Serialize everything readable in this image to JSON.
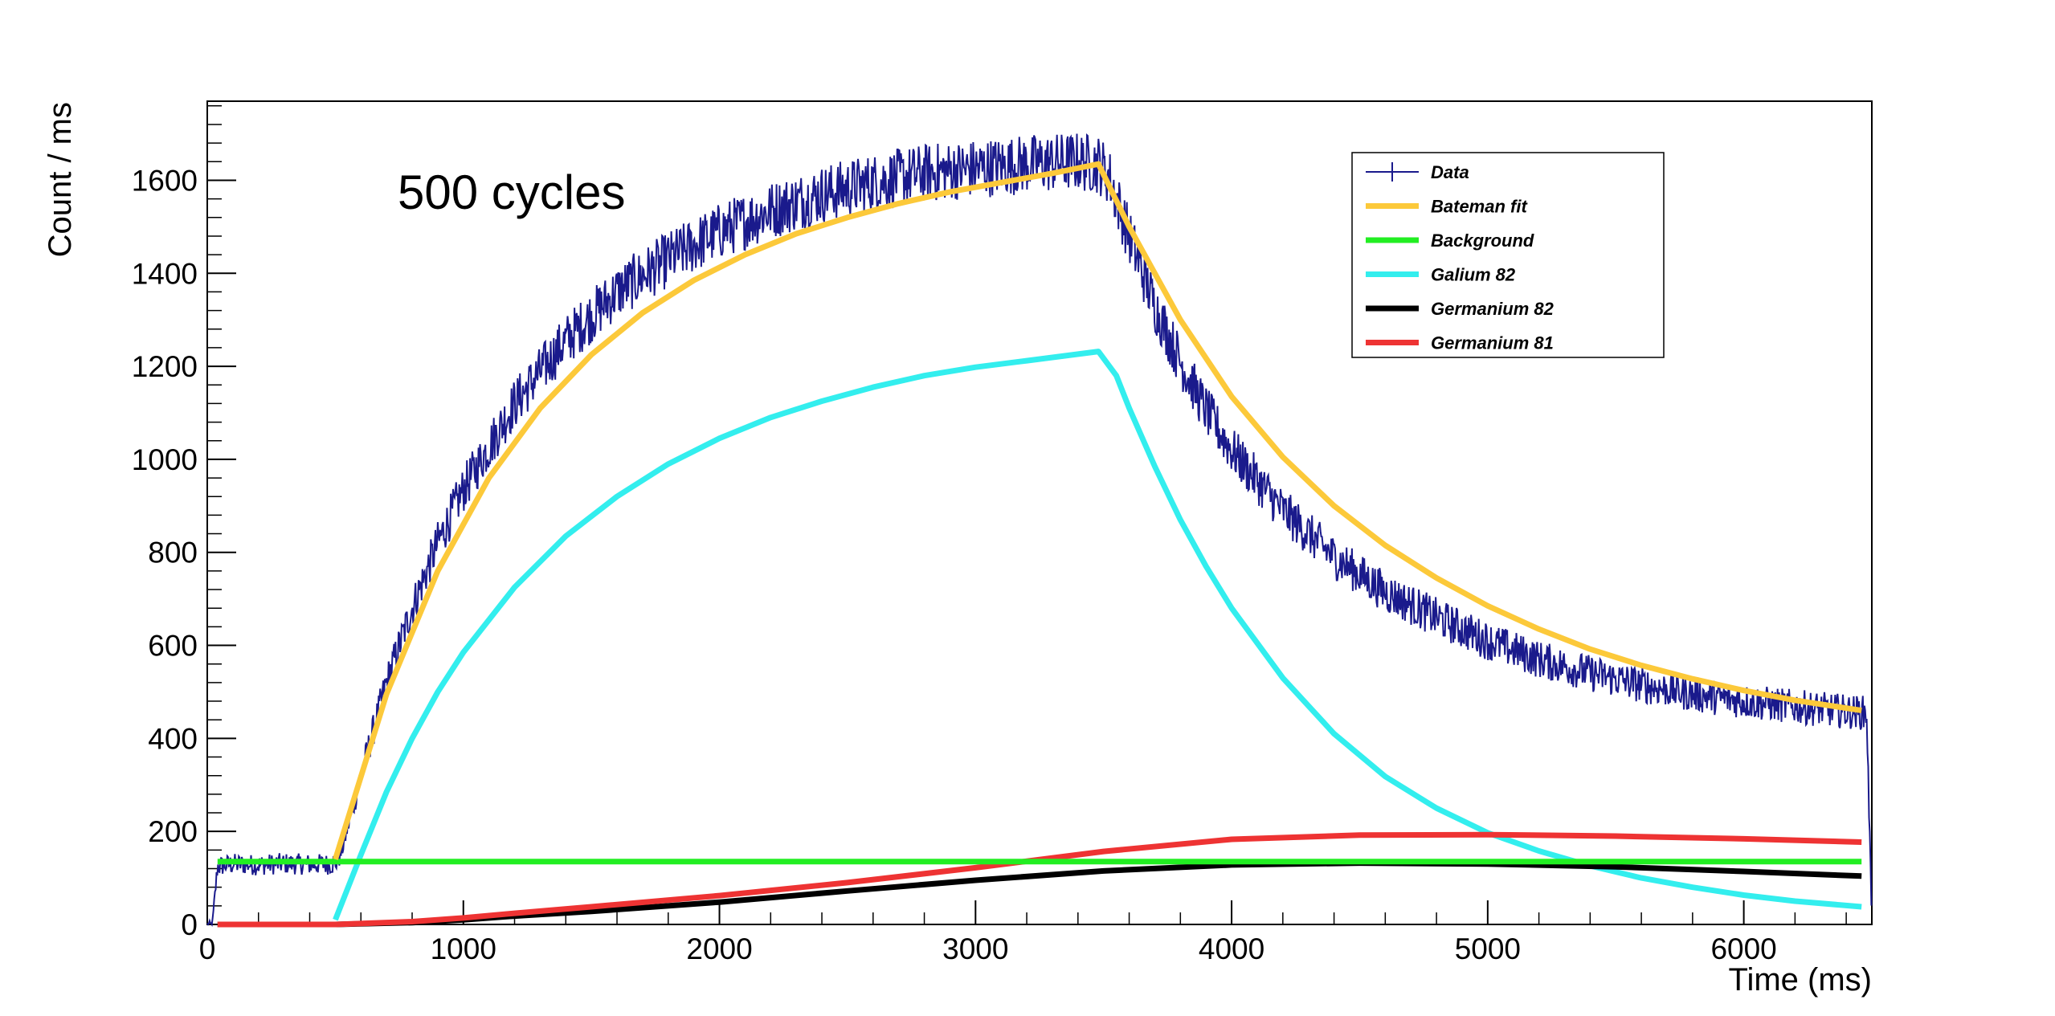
{
  "chart_data": {
    "type": "line",
    "annotation": "500 cycles",
    "xlabel": "Time (ms)",
    "ylabel": "Count / ms",
    "xlim": [
      0,
      6500
    ],
    "ylim": [
      0,
      1770
    ],
    "x_ticks": [
      0,
      1000,
      2000,
      3000,
      4000,
      5000,
      6000
    ],
    "x_tick_labels": [
      "0",
      "1000",
      "2000",
      "3000",
      "4000",
      "5000",
      "6000"
    ],
    "y_ticks": [
      0,
      200,
      400,
      600,
      800,
      1000,
      1200,
      1400,
      1600
    ],
    "y_tick_labels": [
      "0",
      "200",
      "400",
      "600",
      "800",
      "1000",
      "1200",
      "1400",
      "1600"
    ],
    "grid": false,
    "legend_position": "top-right",
    "series": [
      {
        "name": "Data",
        "color": "#1a1a8c",
        "style": "histogram-with-errors",
        "x": [
          0,
          20,
          40,
          100,
          200,
          300,
          400,
          500,
          520,
          600,
          700,
          800,
          900,
          1000,
          1200,
          1400,
          1600,
          1800,
          2000,
          2200,
          2400,
          2600,
          2800,
          3000,
          3200,
          3400,
          3480,
          3520,
          3600,
          3700,
          3800,
          3900,
          4000,
          4200,
          4400,
          4600,
          4800,
          5000,
          5200,
          5400,
          5600,
          5800,
          6000,
          6200,
          6400,
          6480,
          6500
        ],
        "y": [
          0,
          0,
          125,
          130,
          128,
          131,
          129,
          130,
          150,
          320,
          520,
          680,
          820,
          935,
          1120,
          1255,
          1360,
          1430,
          1490,
          1535,
          1570,
          1595,
          1615,
          1625,
          1635,
          1640,
          1635,
          1610,
          1480,
          1330,
          1210,
          1105,
          1020,
          890,
          790,
          715,
          660,
          610,
          570,
          540,
          515,
          495,
          480,
          468,
          458,
          455,
          0
        ]
      },
      {
        "name": "Bateman fit",
        "color": "#fcc93a",
        "x": [
          500,
          700,
          900,
          1100,
          1300,
          1500,
          1700,
          1900,
          2100,
          2300,
          2500,
          2700,
          2900,
          3100,
          3300,
          3480,
          3600,
          3800,
          4000,
          4200,
          4400,
          4600,
          4800,
          5000,
          5200,
          5400,
          5600,
          5800,
          6000,
          6200,
          6460
        ],
        "y": [
          140,
          495,
          760,
          960,
          1110,
          1225,
          1315,
          1385,
          1440,
          1485,
          1520,
          1550,
          1575,
          1595,
          1615,
          1635,
          1500,
          1300,
          1135,
          1005,
          900,
          815,
          745,
          685,
          635,
          592,
          557,
          528,
          503,
          482,
          460
        ]
      },
      {
        "name": "Background",
        "color": "#22ee22",
        "x": [
          40,
          6460
        ],
        "y": [
          135,
          135
        ]
      },
      {
        "name": "Galium 82",
        "color": "#33eeee",
        "x": [
          500,
          600,
          700,
          800,
          900,
          1000,
          1200,
          1400,
          1600,
          1800,
          2000,
          2200,
          2400,
          2600,
          2800,
          3000,
          3200,
          3480,
          3550,
          3600,
          3700,
          3800,
          3900,
          4000,
          4200,
          4400,
          4600,
          4800,
          5000,
          5200,
          5400,
          5600,
          5800,
          6000,
          6200,
          6460
        ],
        "y": [
          10,
          150,
          285,
          400,
          500,
          585,
          725,
          835,
          920,
          990,
          1045,
          1090,
          1125,
          1155,
          1180,
          1198,
          1212,
          1232,
          1180,
          1110,
          985,
          870,
          770,
          680,
          530,
          410,
          318,
          250,
          197,
          158,
          126,
          100,
          80,
          63,
          50,
          38
        ]
      },
      {
        "name": "Germanium 82",
        "color": "#000000",
        "x": [
          40,
          500,
          800,
          1000,
          1200,
          1500,
          2000,
          2500,
          3000,
          3500,
          4000,
          4500,
          5000,
          5500,
          6000,
          6460
        ],
        "y": [
          0,
          0,
          4,
          10,
          18,
          28,
          48,
          72,
          95,
          115,
          128,
          132,
          130,
          124,
          114,
          104
        ]
      },
      {
        "name": "Germanium 81",
        "color": "#ee3333",
        "x": [
          40,
          500,
          800,
          1000,
          1200,
          1500,
          2000,
          2500,
          3000,
          3500,
          4000,
          4500,
          5000,
          5500,
          6000,
          6460
        ],
        "y": [
          0,
          0,
          6,
          14,
          24,
          38,
          62,
          90,
          122,
          157,
          183,
          192,
          193,
          190,
          184,
          177
        ]
      }
    ]
  }
}
